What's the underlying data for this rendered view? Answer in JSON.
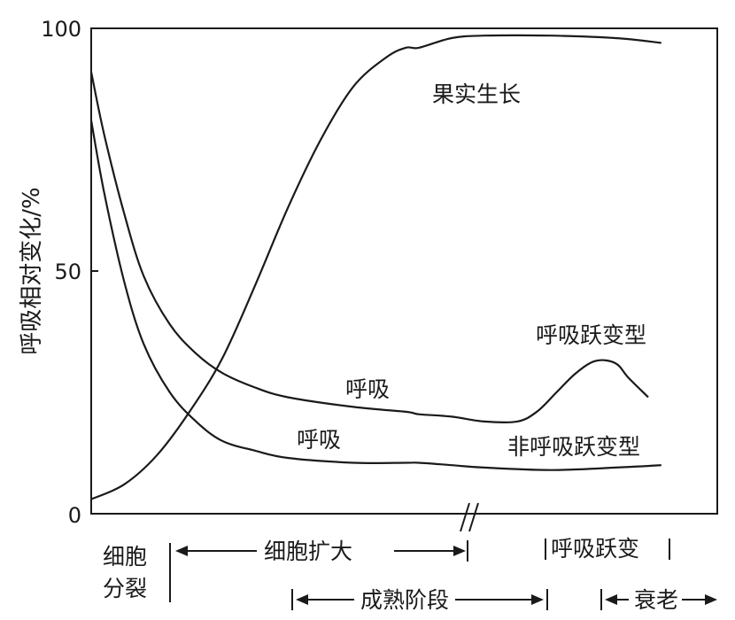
{
  "chart_data": {
    "type": "line",
    "title": "",
    "ylabel": "呼吸相对变化/%",
    "xlabel": "",
    "ylim": [
      0,
      100
    ],
    "yticks": [
      "0",
      "50",
      "100"
    ],
    "grid": false,
    "series": [
      {
        "name": "果实生长",
        "points": [
          [
            0,
            3
          ],
          [
            5,
            6
          ],
          [
            10,
            12
          ],
          [
            15,
            21
          ],
          [
            20,
            32
          ],
          [
            25,
            47
          ],
          [
            30,
            63
          ],
          [
            35,
            77
          ],
          [
            40,
            88
          ],
          [
            45,
            94
          ],
          [
            48,
            96
          ],
          [
            50,
            96
          ],
          [
            55,
            98
          ],
          [
            60,
            98.5
          ],
          [
            70,
            98.5
          ],
          [
            80,
            98
          ],
          [
            87,
            97
          ]
        ]
      },
      {
        "name": "呼吸跃变型",
        "points": [
          [
            0,
            91
          ],
          [
            2,
            78
          ],
          [
            5,
            62
          ],
          [
            8,
            49
          ],
          [
            12,
            39
          ],
          [
            16,
            33
          ],
          [
            20,
            29
          ],
          [
            25,
            26
          ],
          [
            30,
            24
          ],
          [
            40,
            22
          ],
          [
            48,
            21
          ],
          [
            50,
            20.5
          ],
          [
            55,
            20
          ],
          [
            60,
            19
          ],
          [
            65,
            19
          ],
          [
            68,
            21
          ],
          [
            71,
            25
          ],
          [
            74,
            29
          ],
          [
            77,
            31.5
          ],
          [
            80,
            31
          ],
          [
            82,
            28
          ],
          [
            85,
            24
          ]
        ]
      },
      {
        "name": "非呼吸跃变型",
        "points": [
          [
            0,
            81
          ],
          [
            2,
            66
          ],
          [
            5,
            48
          ],
          [
            8,
            35
          ],
          [
            12,
            25
          ],
          [
            16,
            19
          ],
          [
            20,
            15
          ],
          [
            25,
            13
          ],
          [
            30,
            11.5
          ],
          [
            40,
            10.5
          ],
          [
            48,
            10.5
          ],
          [
            50,
            10.5
          ],
          [
            55,
            10
          ],
          [
            60,
            9.5
          ],
          [
            70,
            9
          ],
          [
            80,
            9.5
          ],
          [
            87,
            10
          ]
        ]
      }
    ],
    "annotations": {
      "fruit_growth": "果实生长",
      "respiration_upper": "呼吸",
      "respiration_lower": "呼吸",
      "climacteric": "呼吸跃变型",
      "non_climacteric": "非呼吸跃变型"
    },
    "stages": {
      "cell_division_line1": "细胞",
      "cell_division_line2": "分裂",
      "cell_expansion": "细胞扩大",
      "climacteric_rise": "呼吸跃变",
      "maturation": "成熟阶段",
      "senescence": "衰老"
    }
  }
}
